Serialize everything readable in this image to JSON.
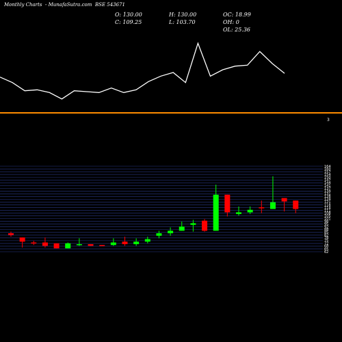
{
  "header": {
    "chart_kind": "Monthly Charts",
    "site": "- MunafaSutra.com",
    "symbol": "BSE 543671"
  },
  "ohlc": {
    "open": "O: 130.00",
    "close": "C: 109.25",
    "high": "H: 130.00",
    "low": "L: 103.70",
    "oc": "OC: 18.99",
    "oh": "OH: 0",
    "ol": "OL: 25.36"
  },
  "divider_label": "3",
  "colors": {
    "up": "#00ff00",
    "down": "#ff0000",
    "divider": "#ff8c00",
    "grid": "#2a3a8a",
    "line": "#ffffff"
  },
  "chart_data": [
    {
      "type": "line",
      "series": [
        {
          "values": [
            78,
            72,
            63,
            64,
            61,
            54,
            63,
            62,
            61,
            66,
            61,
            64,
            73,
            79,
            83,
            72,
            115,
            79,
            86,
            90,
            91,
            106,
            93,
            82
          ]
        }
      ]
    },
    {
      "type": "candlestick",
      "y_ticks": [
        "164",
        "160",
        "157",
        "154",
        "150",
        "147",
        "144",
        "141",
        "137",
        "134",
        "131",
        "128",
        "124",
        "121",
        "118",
        "114",
        "111",
        "108",
        "105",
        "101",
        "98",
        "95",
        "92",
        "88",
        "85",
        "82",
        "78",
        "75",
        "72",
        "68",
        "65",
        "62"
      ],
      "ylim": [
        62,
        164
      ],
      "candles": [
        {
          "open": 84,
          "high": 86,
          "low": 80,
          "close": 82
        },
        {
          "open": 79,
          "high": 79,
          "low": 67,
          "close": 74
        },
        {
          "open": 73,
          "high": 75,
          "low": 70,
          "close": 72
        },
        {
          "open": 73,
          "high": 79,
          "low": 67,
          "close": 69
        },
        {
          "open": 72,
          "high": 72,
          "low": 66,
          "close": 66
        },
        {
          "open": 66,
          "high": 73,
          "low": 66,
          "close": 72
        },
        {
          "open": 71,
          "high": 78,
          "low": 69,
          "close": 71
        },
        {
          "open": 71,
          "high": 71,
          "low": 69,
          "close": 69
        },
        {
          "open": 70,
          "high": 70,
          "low": 69,
          "close": 69
        },
        {
          "open": 70,
          "high": 78,
          "low": 69,
          "close": 73
        },
        {
          "open": 74,
          "high": 80,
          "low": 69,
          "close": 71
        },
        {
          "open": 71,
          "high": 78,
          "low": 69,
          "close": 74
        },
        {
          "open": 74,
          "high": 80,
          "low": 72,
          "close": 77
        },
        {
          "open": 81,
          "high": 87,
          "low": 78,
          "close": 84
        },
        {
          "open": 84,
          "high": 91,
          "low": 81,
          "close": 87
        },
        {
          "open": 87,
          "high": 98,
          "low": 87,
          "close": 92
        },
        {
          "open": 94,
          "high": 100,
          "low": 86,
          "close": 96
        },
        {
          "open": 99,
          "high": 101,
          "low": 86,
          "close": 87
        },
        {
          "open": 87,
          "high": 142,
          "low": 87,
          "close": 130
        },
        {
          "open": 130,
          "high": 130,
          "low": 104,
          "close": 109
        },
        {
          "open": 107,
          "high": 116,
          "low": 105,
          "close": 109
        },
        {
          "open": 109,
          "high": 116,
          "low": 107,
          "close": 112
        },
        {
          "open": 115,
          "high": 123,
          "low": 108,
          "close": 114
        },
        {
          "open": 113,
          "high": 152,
          "low": 113,
          "close": 121
        },
        {
          "open": 126,
          "high": 126,
          "low": 110,
          "close": 122
        },
        {
          "open": 123,
          "high": 123,
          "low": 108,
          "close": 113
        }
      ]
    }
  ]
}
